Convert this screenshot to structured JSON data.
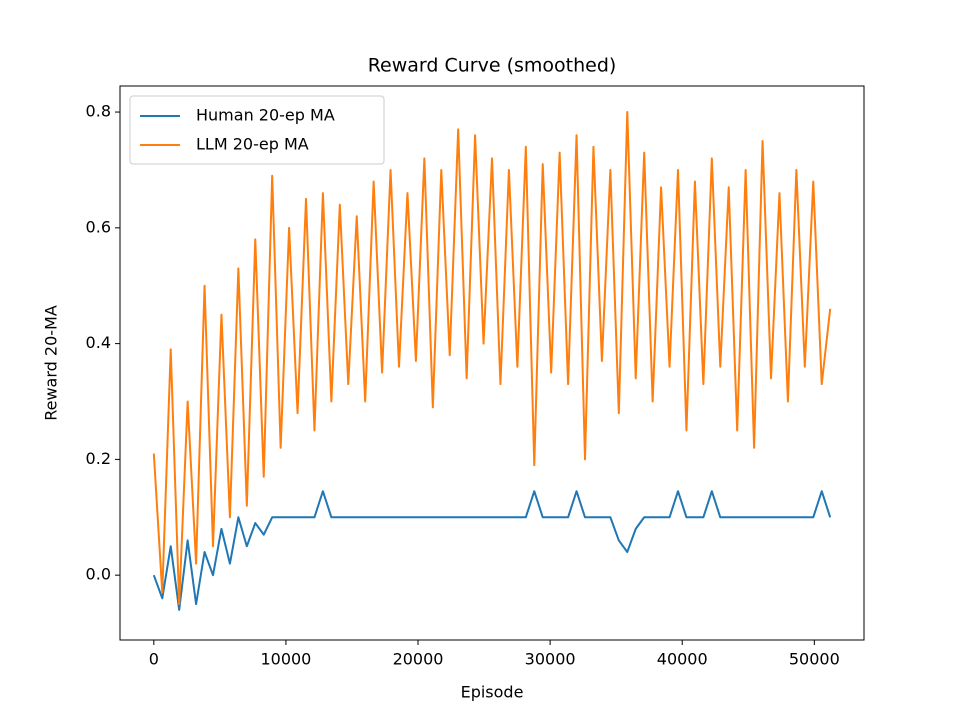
{
  "chart_data": {
    "type": "line",
    "title": "Reward Curve (smoothed)",
    "x_label": "Episode",
    "y_label": "Reward 20-MA",
    "x": [
      0,
      640,
      1280,
      1920,
      2560,
      3200,
      3840,
      4480,
      5120,
      5760,
      6400,
      7040,
      7680,
      8320,
      8960,
      9600,
      10240,
      10880,
      11520,
      12160,
      12800,
      13440,
      14080,
      14720,
      15360,
      16000,
      16640,
      17280,
      17920,
      18560,
      19200,
      19840,
      20480,
      21120,
      21760,
      22400,
      23040,
      23680,
      24320,
      24960,
      25600,
      26240,
      26880,
      27520,
      28160,
      28800,
      29440,
      30080,
      30720,
      31360,
      32000,
      32640,
      33280,
      33920,
      34560,
      35200,
      35840,
      36480,
      37120,
      37760,
      38400,
      39040,
      39680,
      40320,
      40960,
      41600,
      42240,
      42880,
      43520,
      44160,
      44800,
      45440,
      46080,
      46720,
      47360,
      48000,
      48640,
      49280,
      49920,
      50560,
      51200
    ],
    "series": [
      {
        "name": "Human 20-ep MA",
        "color": "#1f77b4",
        "values": [
          0.0,
          -0.04,
          0.05,
          -0.06,
          0.06,
          -0.05,
          0.04,
          0.0,
          0.08,
          0.02,
          0.1,
          0.05,
          0.09,
          0.07,
          0.1,
          0.1,
          0.1,
          0.1,
          0.1,
          0.1,
          0.145,
          0.1,
          0.1,
          0.1,
          0.1,
          0.1,
          0.1,
          0.1,
          0.1,
          0.1,
          0.1,
          0.1,
          0.1,
          0.1,
          0.1,
          0.1,
          0.1,
          0.1,
          0.1,
          0.1,
          0.1,
          0.1,
          0.1,
          0.1,
          0.1,
          0.145,
          0.1,
          0.1,
          0.1,
          0.1,
          0.145,
          0.1,
          0.1,
          0.1,
          0.1,
          0.06,
          0.04,
          0.08,
          0.1,
          0.1,
          0.1,
          0.1,
          0.145,
          0.1,
          0.1,
          0.1,
          0.145,
          0.1,
          0.1,
          0.1,
          0.1,
          0.1,
          0.1,
          0.1,
          0.1,
          0.1,
          0.1,
          0.1,
          0.1,
          0.145,
          0.1
        ]
      },
      {
        "name": "LLM 20-ep MA",
        "color": "#ff7f0e",
        "values": [
          0.21,
          -0.03,
          0.39,
          -0.05,
          0.3,
          0.02,
          0.5,
          0.05,
          0.45,
          0.1,
          0.53,
          0.12,
          0.58,
          0.17,
          0.69,
          0.22,
          0.6,
          0.28,
          0.65,
          0.25,
          0.66,
          0.3,
          0.64,
          0.33,
          0.62,
          0.3,
          0.68,
          0.35,
          0.7,
          0.36,
          0.66,
          0.37,
          0.72,
          0.29,
          0.7,
          0.38,
          0.77,
          0.34,
          0.76,
          0.4,
          0.72,
          0.33,
          0.7,
          0.36,
          0.74,
          0.19,
          0.71,
          0.35,
          0.73,
          0.33,
          0.76,
          0.2,
          0.74,
          0.37,
          0.7,
          0.28,
          0.8,
          0.34,
          0.73,
          0.3,
          0.67,
          0.36,
          0.7,
          0.25,
          0.68,
          0.33,
          0.72,
          0.36,
          0.67,
          0.25,
          0.7,
          0.22,
          0.75,
          0.34,
          0.66,
          0.3,
          0.7,
          0.36,
          0.68,
          0.33,
          0.46
        ]
      }
    ],
    "xlim": [
      -2560,
      53760
    ],
    "ylim": [
      -0.112,
      0.845
    ],
    "xticks": [
      0,
      10000,
      20000,
      30000,
      40000,
      50000
    ],
    "yticks": [
      {
        "value": 0,
        "label": "0.0"
      },
      0.2,
      0.4,
      0.6,
      0.8
    ],
    "legend": "upper left"
  }
}
